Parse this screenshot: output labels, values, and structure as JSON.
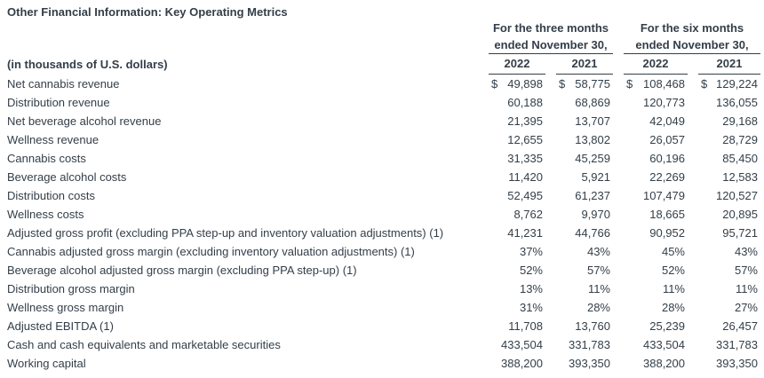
{
  "title": "Other Financial Information: Key Operating Metrics",
  "colors": {
    "text": "#333e48",
    "rule": "#333e48",
    "background": "#ffffff"
  },
  "table": {
    "unit_label": "(in thousands of U.S. dollars)",
    "column_groups": [
      {
        "line1": "For the three months",
        "line2": "ended November 30,",
        "years": [
          "2022",
          "2021"
        ]
      },
      {
        "line1": "For the six months",
        "line2": "ended November 30,",
        "years": [
          "2022",
          "2021"
        ]
      }
    ],
    "rows": [
      {
        "label": "Net cannabis revenue",
        "dollar": true,
        "values": [
          "49,898",
          "58,775",
          "108,468",
          "129,224"
        ]
      },
      {
        "label": "Distribution revenue",
        "dollar": false,
        "values": [
          "60,188",
          "68,869",
          "120,773",
          "136,055"
        ]
      },
      {
        "label": "Net beverage alcohol revenue",
        "dollar": false,
        "values": [
          "21,395",
          "13,707",
          "42,049",
          "29,168"
        ]
      },
      {
        "label": "Wellness revenue",
        "dollar": false,
        "values": [
          "12,655",
          "13,802",
          "26,057",
          "28,729"
        ]
      },
      {
        "label": "Cannabis costs",
        "dollar": false,
        "values": [
          "31,335",
          "45,259",
          "60,196",
          "85,450"
        ]
      },
      {
        "label": "Beverage alcohol costs",
        "dollar": false,
        "values": [
          "11,420",
          "5,921",
          "22,269",
          "12,583"
        ]
      },
      {
        "label": "Distribution costs",
        "dollar": false,
        "values": [
          "52,495",
          "61,237",
          "107,479",
          "120,527"
        ]
      },
      {
        "label": "Wellness costs",
        "dollar": false,
        "values": [
          "8,762",
          "9,970",
          "18,665",
          "20,895"
        ]
      },
      {
        "label": "Adjusted gross profit (excluding PPA step-up and inventory valuation adjustments) (1)",
        "dollar": false,
        "values": [
          "41,231",
          "44,766",
          "90,952",
          "95,721"
        ]
      },
      {
        "label": "Cannabis adjusted gross margin (excluding inventory valuation adjustments) (1)",
        "dollar": false,
        "values": [
          "37%",
          "43%",
          "45%",
          "43%"
        ]
      },
      {
        "label": "Beverage alcohol adjusted gross margin (excluding PPA step-up) (1)",
        "dollar": false,
        "values": [
          "52%",
          "57%",
          "52%",
          "57%"
        ]
      },
      {
        "label": "Distribution gross margin",
        "dollar": false,
        "values": [
          "13%",
          "11%",
          "11%",
          "11%"
        ]
      },
      {
        "label": "Wellness gross margin",
        "dollar": false,
        "values": [
          "31%",
          "28%",
          "28%",
          "27%"
        ]
      },
      {
        "label": "Adjusted EBITDA (1)",
        "dollar": false,
        "values": [
          "11,708",
          "13,760",
          "25,239",
          "26,457"
        ]
      },
      {
        "label": "Cash and cash equivalents and marketable securities",
        "dollar": false,
        "values": [
          "433,504",
          "331,783",
          "433,504",
          "331,783"
        ]
      },
      {
        "label": "Working capital",
        "dollar": false,
        "values": [
          "388,200",
          "393,350",
          "388,200",
          "393,350"
        ]
      }
    ]
  }
}
